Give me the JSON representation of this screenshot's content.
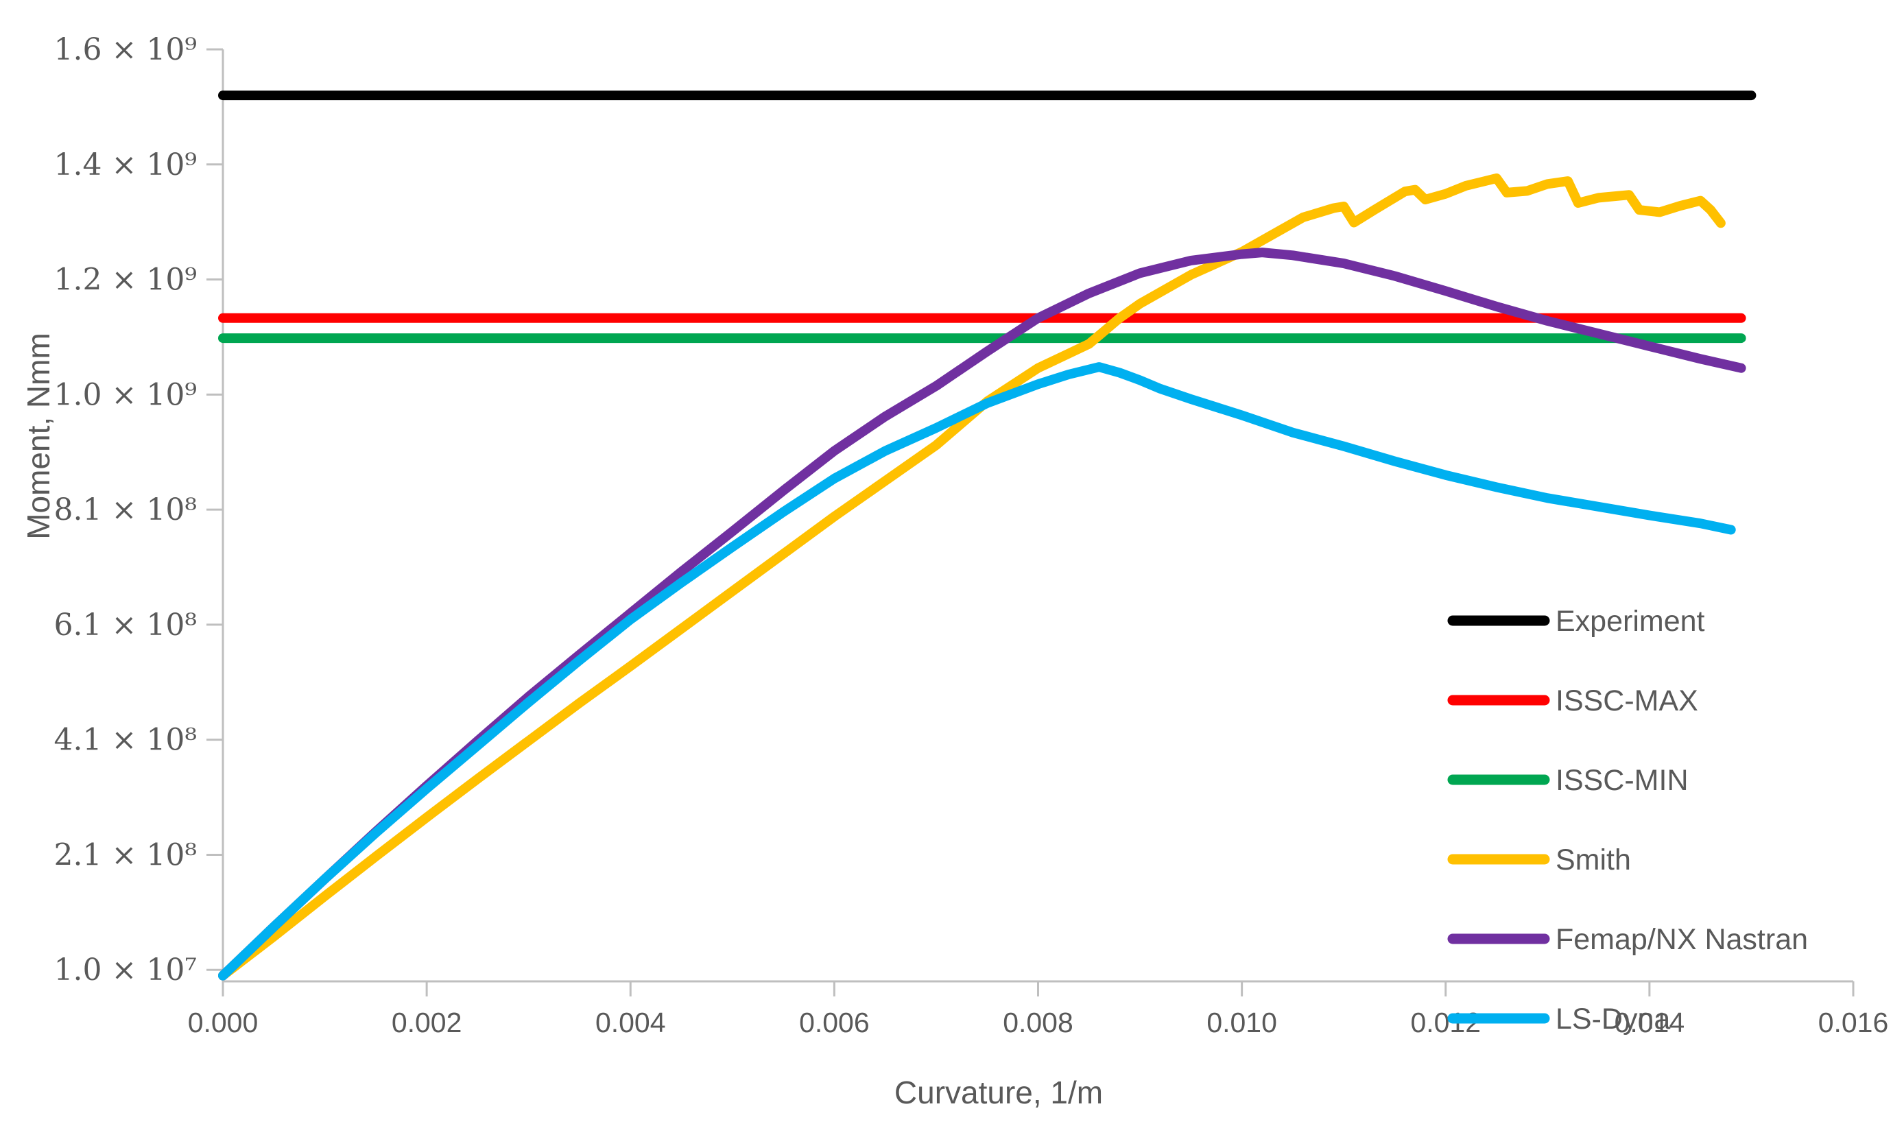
{
  "chart_data": {
    "type": "line",
    "title": "",
    "xlabel": "Curvature, 1/m",
    "ylabel": "Moment, Nmm",
    "grid": false,
    "background": "#ffffff",
    "axis_color": "#bfbfbf",
    "text_color": "#595959",
    "legend": {
      "position": "inside-right"
    },
    "x_axis": {
      "min": 0,
      "max": 0.016,
      "ticks": [
        {
          "value": 0.0,
          "label": "0.000"
        },
        {
          "value": 0.002,
          "label": "0.002"
        },
        {
          "value": 0.004,
          "label": "0.004"
        },
        {
          "value": 0.006,
          "label": "0.006"
        },
        {
          "value": 0.008,
          "label": "0.008"
        },
        {
          "value": 0.01,
          "label": "0.010"
        },
        {
          "value": 0.012,
          "label": "0.012"
        },
        {
          "value": 0.014,
          "label": "0.014"
        },
        {
          "value": 0.016,
          "label": "0.016"
        }
      ]
    },
    "y_axis": {
      "plot_min": -10000000.0,
      "plot_max": 1610000000.0,
      "ticks": [
        {
          "value": 10000000.0,
          "label": "1.0 × 10⁷"
        },
        {
          "value": 210000000.0,
          "label": "2.1 × 10⁸"
        },
        {
          "value": 410000000.0,
          "label": "4.1 × 10⁸"
        },
        {
          "value": 610000000.0,
          "label": "6.1 × 10⁸"
        },
        {
          "value": 810000000.0,
          "label": "8.1 × 10⁸"
        },
        {
          "value": 1010000000.0,
          "label": "1.0 × 10⁹"
        },
        {
          "value": 1210000000.0,
          "label": "1.2 × 10⁹"
        },
        {
          "value": 1410000000.0,
          "label": "1.4 × 10⁹"
        },
        {
          "value": 1610000000.0,
          "label": "1.6 × 10⁹"
        }
      ]
    },
    "series": [
      {
        "name": "Experiment",
        "color": "#000000",
        "style": "horizontal-line",
        "value": 1530000000.0,
        "points": [
          [
            0.0,
            1530000000.0
          ],
          [
            0.015,
            1530000000.0
          ]
        ]
      },
      {
        "name": "ISSC-MAX",
        "color": "#ff0000",
        "style": "horizontal-line",
        "value": 1143000000.0,
        "points": [
          [
            0.0,
            1143000000.0
          ],
          [
            0.0149,
            1143000000.0
          ]
        ]
      },
      {
        "name": "ISSC-MIN",
        "color": "#00a651",
        "style": "horizontal-line",
        "value": 1108000000.0,
        "points": [
          [
            0.0,
            1108000000.0
          ],
          [
            0.0149,
            1108000000.0
          ]
        ]
      },
      {
        "name": "Smith",
        "color": "#ffc000",
        "style": "curve",
        "points": [
          [
            0.0,
            0
          ],
          [
            0.0005,
            68000000.0
          ],
          [
            0.001,
            138000000.0
          ],
          [
            0.0015,
            207000000.0
          ],
          [
            0.002,
            275000000.0
          ],
          [
            0.0025,
            342000000.0
          ],
          [
            0.003,
            408000000.0
          ],
          [
            0.0035,
            474000000.0
          ],
          [
            0.004,
            538000000.0
          ],
          [
            0.0045,
            603000000.0
          ],
          [
            0.005,
            668000000.0
          ],
          [
            0.0055,
            733000000.0
          ],
          [
            0.006,
            798000000.0
          ],
          [
            0.0065,
            860000000.0
          ],
          [
            0.007,
            922000000.0
          ],
          [
            0.0075,
            998000000.0
          ],
          [
            0.008,
            1056000000.0
          ],
          [
            0.0085,
            1098000000.0
          ],
          [
            0.0088,
            1143000000.0
          ],
          [
            0.009,
            1168000000.0
          ],
          [
            0.0095,
            1218000000.0
          ],
          [
            0.01,
            1258000000.0
          ],
          [
            0.0103,
            1288000000.0
          ],
          [
            0.0106,
            1318000000.0
          ],
          [
            0.0109,
            1334000000.0
          ],
          [
            0.011,
            1337000000.0
          ],
          [
            0.0111,
            1309000000.0
          ],
          [
            0.0113,
            1331000000.0
          ],
          [
            0.0116,
            1363000000.0
          ],
          [
            0.0117,
            1366000000.0
          ],
          [
            0.0118,
            1349000000.0
          ],
          [
            0.012,
            1359000000.0
          ],
          [
            0.0122,
            1373000000.0
          ],
          [
            0.0125,
            1386000000.0
          ],
          [
            0.0126,
            1361000000.0
          ],
          [
            0.0128,
            1364000000.0
          ],
          [
            0.013,
            1376000000.0
          ],
          [
            0.0132,
            1381000000.0
          ],
          [
            0.0133,
            1343000000.0
          ],
          [
            0.0135,
            1352000000.0
          ],
          [
            0.0138,
            1357000000.0
          ],
          [
            0.0139,
            1331000000.0
          ],
          [
            0.0141,
            1327000000.0
          ],
          [
            0.0143,
            1338000000.0
          ],
          [
            0.0145,
            1347000000.0
          ],
          [
            0.0146,
            1331000000.0
          ],
          [
            0.0147,
            1308000000.0
          ]
        ]
      },
      {
        "name": "Femap/NX Nastran",
        "color": "#7030a0",
        "style": "curve",
        "points": [
          [
            0.0,
            0
          ],
          [
            0.0005,
            85000000.0
          ],
          [
            0.001,
            168000000.0
          ],
          [
            0.0015,
            250000000.0
          ],
          [
            0.002,
            330000000.0
          ],
          [
            0.0025,
            408000000.0
          ],
          [
            0.003,
            485000000.0
          ],
          [
            0.0035,
            558000000.0
          ],
          [
            0.004,
            630000000.0
          ],
          [
            0.0045,
            702000000.0
          ],
          [
            0.005,
            772000000.0
          ],
          [
            0.0055,
            843000000.0
          ],
          [
            0.006,
            912000000.0
          ],
          [
            0.0065,
            972000000.0
          ],
          [
            0.007,
            1025000000.0
          ],
          [
            0.0075,
            1085000000.0
          ],
          [
            0.008,
            1143000000.0
          ],
          [
            0.0085,
            1186000000.0
          ],
          [
            0.009,
            1221000000.0
          ],
          [
            0.0095,
            1243000000.0
          ],
          [
            0.01,
            1254000000.0
          ],
          [
            0.0102,
            1257000000.0
          ],
          [
            0.0105,
            1252000000.0
          ],
          [
            0.011,
            1238000000.0
          ],
          [
            0.0115,
            1216000000.0
          ],
          [
            0.012,
            1190000000.0
          ],
          [
            0.0125,
            1163000000.0
          ],
          [
            0.013,
            1138000000.0
          ],
          [
            0.0135,
            1116000000.0
          ],
          [
            0.014,
            1094000000.0
          ],
          [
            0.0145,
            1072000000.0
          ],
          [
            0.0149,
            1056000000.0
          ]
        ]
      },
      {
        "name": "LS-Dyna",
        "color": "#00b0f0",
        "style": "curve",
        "points": [
          [
            0.0,
            0
          ],
          [
            0.0005,
            85000000.0
          ],
          [
            0.001,
            168000000.0
          ],
          [
            0.0015,
            248000000.0
          ],
          [
            0.002,
            325000000.0
          ],
          [
            0.0025,
            400000000.0
          ],
          [
            0.003,
            475000000.0
          ],
          [
            0.0035,
            548000000.0
          ],
          [
            0.004,
            619000000.0
          ],
          [
            0.0045,
            683000000.0
          ],
          [
            0.005,
            745000000.0
          ],
          [
            0.0055,
            806000000.0
          ],
          [
            0.006,
            864000000.0
          ],
          [
            0.0065,
            912000000.0
          ],
          [
            0.007,
            952000000.0
          ],
          [
            0.0075,
            995000000.0
          ],
          [
            0.008,
            1028000000.0
          ],
          [
            0.0083,
            1045000000.0
          ],
          [
            0.0086,
            1058000000.0
          ],
          [
            0.0088,
            1048000000.0
          ],
          [
            0.009,
            1035000000.0
          ],
          [
            0.0092,
            1020000000.0
          ],
          [
            0.0095,
            1002000000.0
          ],
          [
            0.01,
            974000000.0
          ],
          [
            0.0105,
            944000000.0
          ],
          [
            0.011,
            920000000.0
          ],
          [
            0.0115,
            894000000.0
          ],
          [
            0.012,
            870000000.0
          ],
          [
            0.0125,
            849000000.0
          ],
          [
            0.013,
            830000000.0
          ],
          [
            0.0135,
            815000000.0
          ],
          [
            0.014,
            800000000.0
          ],
          [
            0.0145,
            786000000.0
          ],
          [
            0.0148,
            775000000.0
          ]
        ]
      }
    ]
  }
}
